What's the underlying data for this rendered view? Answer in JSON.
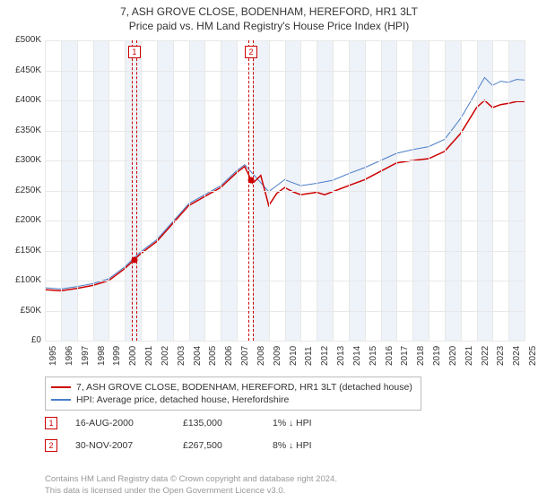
{
  "title": "7, ASH GROVE CLOSE, BODENHAM, HEREFORD, HR1 3LT",
  "subtitle": "Price paid vs. HM Land Registry's House Price Index (HPI)",
  "chart": {
    "type": "line",
    "xlim": [
      1995,
      2025
    ],
    "ylim": [
      0,
      500000
    ],
    "ytick_step": 50000,
    "xtick_step": 1,
    "background_color": "#ffffff",
    "grid_color": "#e8e8e8",
    "shade_color": "#eef2f9",
    "yticks_labels": [
      "£0",
      "£50K",
      "£100K",
      "£150K",
      "£200K",
      "£250K",
      "£300K",
      "£350K",
      "£400K",
      "£450K",
      "£500K"
    ],
    "xticks": [
      1995,
      1996,
      1997,
      1998,
      1999,
      2000,
      2001,
      2002,
      2003,
      2004,
      2005,
      2006,
      2007,
      2008,
      2009,
      2010,
      2011,
      2012,
      2013,
      2014,
      2015,
      2016,
      2017,
      2018,
      2019,
      2020,
      2021,
      2022,
      2023,
      2024,
      2025
    ],
    "series1": {
      "label": "7, ASH GROVE CLOSE, BODENHAM, HEREFORD, HR1 3LT (detached house)",
      "color": "#cc0000",
      "line_width": 1.5,
      "points": [
        [
          1995,
          85000
        ],
        [
          1996,
          83000
        ],
        [
          1997,
          87000
        ],
        [
          1998,
          92000
        ],
        [
          1999,
          100000
        ],
        [
          2000,
          120000
        ],
        [
          2000.6,
          135000
        ],
        [
          2001,
          145000
        ],
        [
          2002,
          165000
        ],
        [
          2003,
          195000
        ],
        [
          2004,
          225000
        ],
        [
          2005,
          240000
        ],
        [
          2006,
          255000
        ],
        [
          2007,
          280000
        ],
        [
          2007.5,
          290000
        ],
        [
          2007.9,
          267500
        ],
        [
          2008,
          262000
        ],
        [
          2008.5,
          275000
        ],
        [
          2009,
          225000
        ],
        [
          2009.5,
          245000
        ],
        [
          2010,
          255000
        ],
        [
          2010.5,
          248000
        ],
        [
          2011,
          243000
        ],
        [
          2012,
          247000
        ],
        [
          2012.5,
          243000
        ],
        [
          2013,
          248000
        ],
        [
          2014,
          258000
        ],
        [
          2015,
          268000
        ],
        [
          2016,
          282000
        ],
        [
          2017,
          296000
        ],
        [
          2018,
          300000
        ],
        [
          2019,
          303000
        ],
        [
          2020,
          315000
        ],
        [
          2021,
          345000
        ],
        [
          2022,
          388000
        ],
        [
          2022.5,
          400000
        ],
        [
          2023,
          388000
        ],
        [
          2023.5,
          393000
        ],
        [
          2024,
          395000
        ],
        [
          2024.5,
          398000
        ],
        [
          2025,
          398000
        ]
      ]
    },
    "series2": {
      "label": "HPI: Average price, detached house, Herefordshire",
      "color": "#4a7ec8",
      "line_width": 1,
      "points": [
        [
          1995,
          88000
        ],
        [
          1996,
          86000
        ],
        [
          1997,
          90000
        ],
        [
          1998,
          95000
        ],
        [
          1999,
          103000
        ],
        [
          2000,
          123000
        ],
        [
          2001,
          148000
        ],
        [
          2002,
          168000
        ],
        [
          2003,
          198000
        ],
        [
          2004,
          228000
        ],
        [
          2005,
          243000
        ],
        [
          2006,
          258000
        ],
        [
          2007,
          283000
        ],
        [
          2007.5,
          293000
        ],
        [
          2008,
          278000
        ],
        [
          2008.5,
          263000
        ],
        [
          2009,
          248000
        ],
        [
          2009.5,
          258000
        ],
        [
          2010,
          268000
        ],
        [
          2010.5,
          263000
        ],
        [
          2011,
          258000
        ],
        [
          2012,
          262000
        ],
        [
          2013,
          267000
        ],
        [
          2014,
          278000
        ],
        [
          2015,
          288000
        ],
        [
          2016,
          300000
        ],
        [
          2017,
          312000
        ],
        [
          2018,
          318000
        ],
        [
          2019,
          323000
        ],
        [
          2020,
          335000
        ],
        [
          2021,
          370000
        ],
        [
          2022,
          415000
        ],
        [
          2022.5,
          438000
        ],
        [
          2023,
          425000
        ],
        [
          2023.5,
          432000
        ],
        [
          2024,
          430000
        ],
        [
          2024.5,
          435000
        ],
        [
          2025,
          434000
        ]
      ]
    },
    "markers": [
      {
        "n": "1",
        "x": 2000.6,
        "y": 135000
      },
      {
        "n": "2",
        "x": 2007.9,
        "y": 267500
      }
    ]
  },
  "legend": {
    "item1_color": "#cc0000",
    "item2_color": "#4a7ec8"
  },
  "events": [
    {
      "n": "1",
      "date": "16-AUG-2000",
      "price": "£135,000",
      "pct": "1%",
      "dir": "↓",
      "suffix": "HPI"
    },
    {
      "n": "2",
      "date": "30-NOV-2007",
      "price": "£267,500",
      "pct": "8%",
      "dir": "↓",
      "suffix": "HPI"
    }
  ],
  "footer": {
    "line1": "Contains HM Land Registry data © Crown copyright and database right 2024.",
    "line2": "This data is licensed under the Open Government Licence v3.0."
  }
}
